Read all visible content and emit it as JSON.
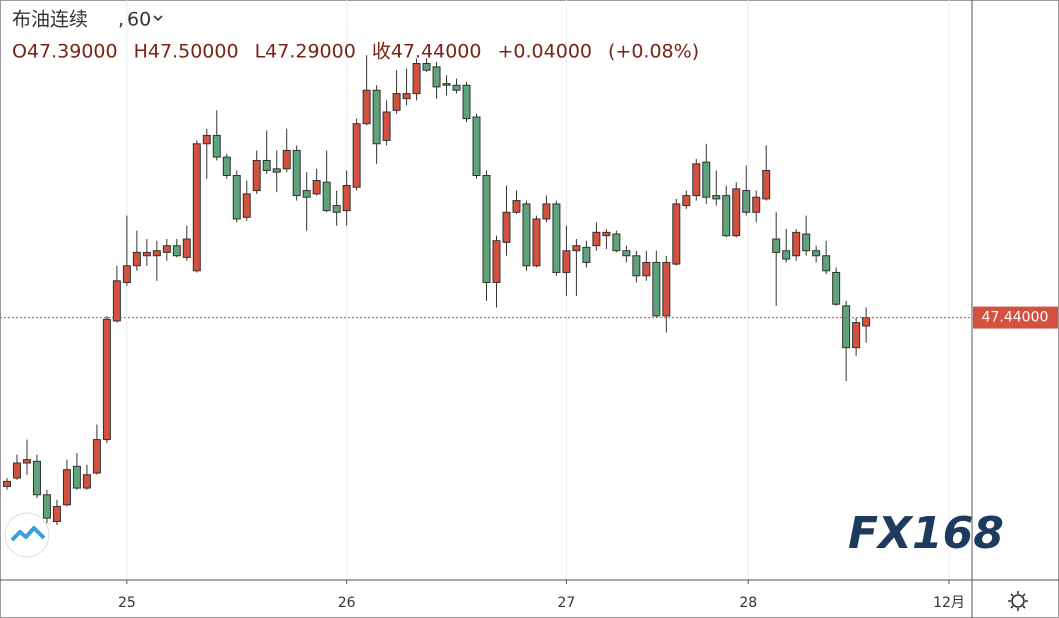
{
  "chart_data": {
    "type": "candlestick",
    "title": "布油连续",
    "interval": "60",
    "header_values": [
      "O47.39000",
      "H47.50000",
      "L47.29000",
      "收47.44000",
      "+0.04000",
      "(+0.08%)"
    ],
    "watermark": "FX168",
    "up_color": "#d2513f",
    "down_color": "#5fa37b",
    "open": [
      46.43,
      46.48,
      46.57,
      46.58,
      46.38,
      46.22,
      46.32,
      46.55,
      46.42,
      46.51,
      46.71,
      47.42,
      47.65,
      47.75,
      47.81,
      47.81,
      47.83,
      47.87,
      47.8,
      47.72,
      48.48,
      48.53,
      48.4,
      48.29,
      48.04,
      48.2,
      48.38,
      48.33,
      48.33,
      48.44,
      48.2,
      48.18,
      48.25,
      48.11,
      48.08,
      48.22,
      48.6,
      48.8,
      48.5,
      48.68,
      48.75,
      48.78,
      48.96,
      48.94,
      48.84,
      48.83,
      48.83,
      48.64,
      48.29,
      47.65,
      47.89,
      48.07,
      48.12,
      47.75,
      48.03,
      48.12,
      47.71,
      47.84,
      47.86,
      47.87,
      47.93,
      47.94,
      47.84,
      47.81,
      47.69,
      47.77,
      47.45,
      47.76,
      48.11,
      48.17,
      48.37,
      48.17,
      48.17,
      47.93,
      48.2,
      48.07,
      48.15,
      47.91,
      47.84,
      47.81,
      47.94,
      47.84,
      47.81,
      47.71,
      47.51,
      47.26,
      47.39
    ],
    "high": [
      46.48,
      46.62,
      46.71,
      46.62,
      46.41,
      46.35,
      46.59,
      46.63,
      46.56,
      46.8,
      47.45,
      47.75,
      48.05,
      47.96,
      47.91,
      47.9,
      47.91,
      47.91,
      47.99,
      48.5,
      48.57,
      48.68,
      48.42,
      48.32,
      48.26,
      48.44,
      48.56,
      48.44,
      48.57,
      48.47,
      48.31,
      48.33,
      48.44,
      48.2,
      48.32,
      48.63,
      49.01,
      48.83,
      48.74,
      48.92,
      48.93,
      48.99,
      48.99,
      48.97,
      48.89,
      48.87,
      48.85,
      48.66,
      48.32,
      47.93,
      48.23,
      48.2,
      48.14,
      48.05,
      48.17,
      48.14,
      47.99,
      47.91,
      47.9,
      48.01,
      47.97,
      47.96,
      47.87,
      47.84,
      47.84,
      47.84,
      47.81,
      48.15,
      48.2,
      48.39,
      48.48,
      48.32,
      48.23,
      48.25,
      48.35,
      48.2,
      48.47,
      48.07,
      47.97,
      47.97,
      48.05,
      47.87,
      47.9,
      47.74,
      47.54,
      47.44,
      47.5
    ],
    "low": [
      46.41,
      46.47,
      46.5,
      46.36,
      46.21,
      46.2,
      46.31,
      46.41,
      46.41,
      46.5,
      46.69,
      47.41,
      47.63,
      47.72,
      47.75,
      47.66,
      47.78,
      47.8,
      47.78,
      47.71,
      48.27,
      48.38,
      48.27,
      48.01,
      48.02,
      48.18,
      48.3,
      48.19,
      48.31,
      48.14,
      47.96,
      48.17,
      48.07,
      47.99,
      47.99,
      48.2,
      48.59,
      48.36,
      48.47,
      48.66,
      48.71,
      48.74,
      48.91,
      48.75,
      48.77,
      48.78,
      48.61,
      48.27,
      47.54,
      47.5,
      47.81,
      48.06,
      47.72,
      47.74,
      48.01,
      47.69,
      47.57,
      47.57,
      47.74,
      47.84,
      47.85,
      47.83,
      47.77,
      47.65,
      47.66,
      47.44,
      47.35,
      47.75,
      48.09,
      48.14,
      48.12,
      48.11,
      47.92,
      47.92,
      48.05,
      48.01,
      48.14,
      47.51,
      47.77,
      47.78,
      47.81,
      47.77,
      47.7,
      47.51,
      47.06,
      47.21,
      47.29
    ],
    "close": [
      46.46,
      46.57,
      46.59,
      46.38,
      46.24,
      46.31,
      46.53,
      46.42,
      46.5,
      46.71,
      47.43,
      47.66,
      47.75,
      47.83,
      47.83,
      47.84,
      47.87,
      47.81,
      47.91,
      48.48,
      48.53,
      48.4,
      48.29,
      48.03,
      48.18,
      48.38,
      48.32,
      48.31,
      48.44,
      48.17,
      48.16,
      48.26,
      48.08,
      48.07,
      48.23,
      48.6,
      48.8,
      48.48,
      48.67,
      48.78,
      48.78,
      48.96,
      48.92,
      48.82,
      48.83,
      48.8,
      48.63,
      48.29,
      47.65,
      47.9,
      48.07,
      48.14,
      47.75,
      48.03,
      48.12,
      47.71,
      47.84,
      47.87,
      47.77,
      47.95,
      47.95,
      47.84,
      47.81,
      47.69,
      47.77,
      47.45,
      47.77,
      48.12,
      48.17,
      48.36,
      48.16,
      48.15,
      47.93,
      48.21,
      48.07,
      48.16,
      48.32,
      47.83,
      47.79,
      47.95,
      47.84,
      47.81,
      47.72,
      47.52,
      47.26,
      47.41,
      47.44
    ],
    "xlim": [
      -0.7,
      96.6
    ],
    "xticks": [
      {
        "value": 12,
        "label": "25"
      },
      {
        "value": 34,
        "label": "26"
      },
      {
        "value": 56,
        "label": "27"
      },
      {
        "value": 74.2,
        "label": "28"
      },
      {
        "value": 94.3,
        "label": "12月"
      }
    ],
    "ylim": [
      45.87,
      49.34
    ],
    "last_price": {
      "value": 47.44,
      "label": "47.44000"
    },
    "grid": true
  }
}
